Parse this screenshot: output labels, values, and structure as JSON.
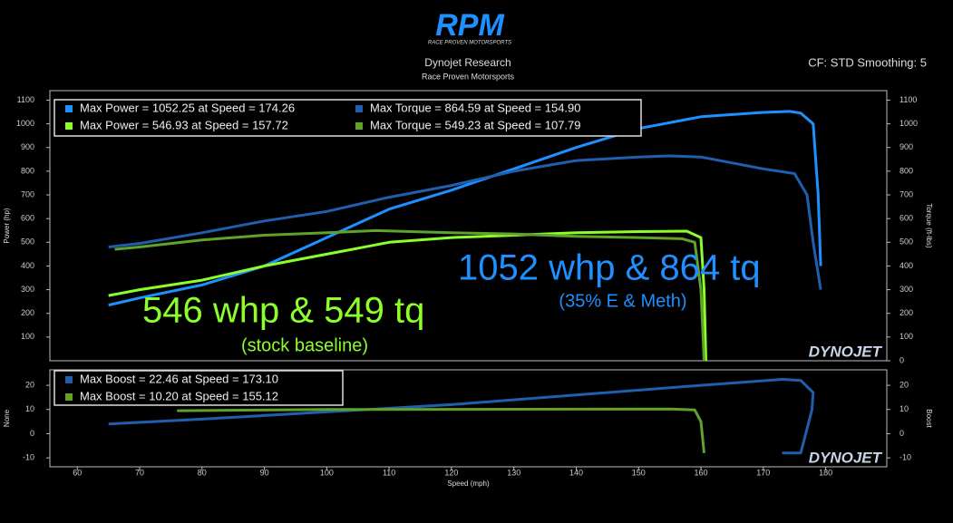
{
  "header": {
    "logo": "RPM",
    "logo_sub": "RACE PROVEN MOTORSPORTS",
    "title": "Dynojet Research",
    "subtitle": "Race Proven Motorsports",
    "settings": "CF: STD Smoothing: 5"
  },
  "chart_data": [
    {
      "type": "line",
      "y_label": "Power (hp)",
      "y2_label": "Torque (ft-lbs)",
      "watermark": "DYNOJET",
      "xlim": [
        55.6,
        189.8
      ],
      "ylim": [
        0,
        1140
      ],
      "y2lim": [
        0,
        1140
      ],
      "yticks": [
        100,
        200,
        300,
        400,
        500,
        600,
        700,
        800,
        900,
        1000,
        1100
      ],
      "y2ticks": [
        0,
        100,
        200,
        300,
        400,
        500,
        600,
        700,
        800,
        900,
        1000,
        1100
      ],
      "annotations": [
        "1052 whp & 864 tq",
        "(35% E & Meth)",
        "546 whp & 549 tq",
        "(stock baseline)"
      ],
      "series": [
        {
          "name": "Max Power = 1052.25 at Speed = 174.26",
          "color": "#1e90ff",
          "x": [
            65,
            70,
            80,
            90,
            100,
            110,
            120,
            130,
            140,
            150,
            160,
            170,
            174.26,
            176,
            178,
            178.8,
            179.2
          ],
          "values": [
            235,
            265,
            320,
            400,
            520,
            640,
            720,
            810,
            900,
            980,
            1030,
            1048,
            1052.25,
            1045,
            1000,
            700,
            400
          ]
        },
        {
          "name": "Max Torque = 864.59 at Speed = 154.90",
          "color": "#1f5fae",
          "axis": "y2",
          "x": [
            65,
            70,
            80,
            90,
            100,
            110,
            120,
            130,
            140,
            150,
            154.9,
            160,
            170,
            175,
            177,
            178,
            179.2
          ],
          "values": [
            480,
            495,
            540,
            590,
            630,
            690,
            740,
            800,
            845,
            860,
            864.59,
            860,
            810,
            790,
            700,
            500,
            300
          ]
        },
        {
          "name": "Max Power = 546.93 at Speed = 157.72",
          "color": "#8cff2a",
          "x": [
            65,
            70,
            80,
            90,
            100,
            110,
            120,
            130,
            140,
            150,
            157.72,
            160,
            160.5,
            160.8
          ],
          "values": [
            275,
            300,
            340,
            400,
            450,
            500,
            520,
            530,
            540,
            545,
            546.93,
            520,
            300,
            0
          ]
        },
        {
          "name": "Max Torque = 549.23 at Speed = 107.79",
          "color": "#5fa32a",
          "axis": "y2",
          "x": [
            66,
            70,
            80,
            90,
            100,
            107.79,
            120,
            130,
            140,
            150,
            157,
            159,
            160,
            160.5
          ],
          "values": [
            470,
            480,
            510,
            530,
            540,
            549.23,
            540,
            535,
            525,
            520,
            515,
            500,
            300,
            0
          ]
        }
      ]
    },
    {
      "type": "line",
      "y_label": "None",
      "y2_label": "Boost",
      "x_label": "Speed (mph)",
      "watermark": "DYNOJET",
      "xlim": [
        55.6,
        189.8
      ],
      "ylim": [
        -13.7,
        26.4
      ],
      "y2lim": [
        -13.7,
        26.4
      ],
      "xticks": [
        60,
        70,
        80,
        90,
        100,
        110,
        120,
        130,
        140,
        150,
        160,
        170,
        180
      ],
      "yticks": [
        -10,
        0,
        10,
        20
      ],
      "y2ticks": [
        -10,
        0,
        10,
        20
      ],
      "series": [
        {
          "name": "Max Boost = 22.46 at Speed = 173.10",
          "color": "#1f5fae",
          "x": [
            65,
            80,
            100,
            120,
            140,
            160,
            173.1,
            176,
            178,
            177.8,
            176,
            173
          ],
          "values": [
            4,
            6,
            9,
            12,
            16,
            20,
            22.46,
            22,
            17,
            10,
            -8,
            -8
          ]
        },
        {
          "name": "Max Boost = 10.20 at Speed = 155.12",
          "color": "#5fa32a",
          "x": [
            76,
            100,
            130,
            155.12,
            159,
            160,
            160.5
          ],
          "values": [
            9.5,
            10,
            10.1,
            10.2,
            9.8,
            5,
            -8
          ]
        }
      ]
    }
  ]
}
